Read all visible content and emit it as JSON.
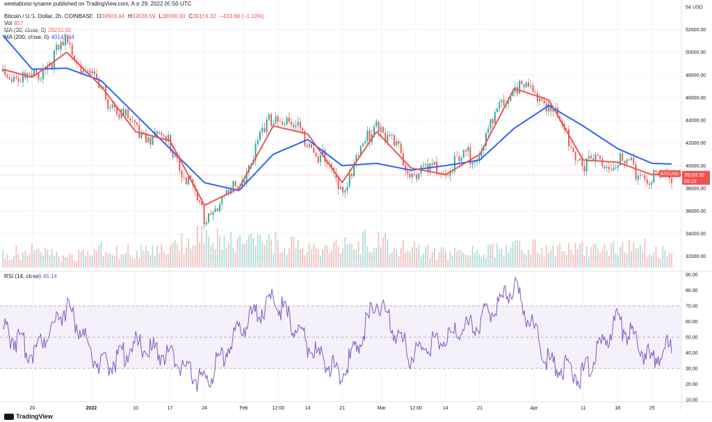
{
  "publish_line": "weetabixismyname published on TradingView.com, Apr 29, 2022 09:50 UTC",
  "legend": {
    "symbol": "Bitcoin / U.S. Dollar, 2h, COINBASE",
    "o_label": "O",
    "o": "39603.44",
    "h_label": "H",
    "h": "39638.59",
    "l_label": "L",
    "l": "38999.00",
    "c_label": "C",
    "c": "39169.32",
    "change": "−433.68 (−1.10%)",
    "vol_label": "Vol",
    "vol": "857",
    "ma30_label": "MA (30, close, 0)",
    "ma30": "39266.98",
    "ma200_label": "MA (200, close, 0)",
    "ma200": "40147.44",
    "rsi_label": "RSI (14, close)",
    "rsi": "45.14"
  },
  "price_axis": {
    "unit_label": "USD",
    "ticks": [
      "54",
      "52000.00",
      "50000.00",
      "48000.00",
      "46000.00",
      "44000.00",
      "42000.00",
      "40000.00",
      "38000.00",
      "36000.00",
      "34000.00",
      "32000.00"
    ],
    "symbol_tag": "BTCUSD",
    "last_price": "39169.32",
    "countdown": "09:19"
  },
  "rsi_axis": {
    "ticks": [
      "90.00",
      "80.00",
      "70.00",
      "60.00",
      "50.00",
      "40.00",
      "30.00",
      "20.00",
      "10.00"
    ]
  },
  "time_axis": {
    "ticks": [
      "20",
      "2022",
      "10",
      "17",
      "24",
      "Feb",
      "12:00",
      "14",
      "21",
      "Mar",
      "12:00",
      "14",
      "21",
      "Apr",
      "11",
      "18",
      "25"
    ]
  },
  "brand": "TradingView",
  "colors": {
    "ma30": "#ef5350",
    "ma200": "#2962ff",
    "rsi": "#7e57c2",
    "up": "#26a69a",
    "down": "#ef5350",
    "rsi_band": "#ede7f6"
  },
  "chart_data": [
    {
      "type": "line",
      "x_unit": "date",
      "y_range": [
        31000,
        54000
      ],
      "x": [
        "2021-12-14",
        "2021-12-20",
        "2021-12-27",
        "2022-01-03",
        "2022-01-10",
        "2022-01-17",
        "2022-01-24",
        "2022-01-31",
        "2022-02-07",
        "2022-02-14",
        "2022-02-21",
        "2022-02-28",
        "2022-03-07",
        "2022-03-14",
        "2022-03-21",
        "2022-03-28",
        "2022-04-04",
        "2022-04-11",
        "2022-04-18",
        "2022-04-25",
        "2022-04-29"
      ],
      "series": [
        {
          "name": "Bitcoin / U.S. Dollar",
          "values": [
            48300,
            47500,
            50800,
            46500,
            43200,
            42000,
            35500,
            38300,
            44500,
            42500,
            38000,
            44000,
            39500,
            39500,
            41500,
            47200,
            45500,
            40200,
            40500,
            38800,
            39169
          ]
        },
        {
          "name": "MA (30, close, 0)",
          "values": [
            48500,
            47800,
            50000,
            47000,
            43000,
            42200,
            36500,
            38000,
            43500,
            42800,
            38500,
            43000,
            39800,
            39200,
            41000,
            46800,
            45800,
            40500,
            40300,
            39200,
            39267
          ]
        },
        {
          "name": "MA (200, close, 0)",
          "values": [
            51500,
            48500,
            48600,
            47500,
            44500,
            41500,
            38500,
            37800,
            41000,
            42300,
            40000,
            40200,
            39600,
            40000,
            40500,
            43300,
            45300,
            43500,
            41500,
            40200,
            40147
          ]
        },
        {
          "name": "Vol",
          "values": [
            900,
            1100,
            700,
            1300,
            1000,
            1200,
            2600,
            1500,
            1700,
            1300,
            1600,
            1800,
            1200,
            900,
            1000,
            1400,
            1300,
            1200,
            1400,
            1300,
            857
          ]
        }
      ]
    },
    {
      "type": "line",
      "x_unit": "date",
      "y_range": [
        10,
        90
      ],
      "bands": [
        30,
        50,
        70
      ],
      "x": [
        "2021-12-14",
        "2021-12-20",
        "2021-12-27",
        "2022-01-03",
        "2022-01-10",
        "2022-01-17",
        "2022-01-24",
        "2022-01-31",
        "2022-02-07",
        "2022-02-14",
        "2022-02-21",
        "2022-02-28",
        "2022-03-07",
        "2022-03-14",
        "2022-03-21",
        "2022-03-28",
        "2022-04-04",
        "2022-04-11",
        "2022-04-18",
        "2022-04-25",
        "2022-04-29"
      ],
      "series": [
        {
          "name": "RSI (14, close)",
          "values": [
            55,
            40,
            70,
            30,
            45,
            38,
            20,
            55,
            75,
            45,
            25,
            72,
            38,
            50,
            60,
            82,
            35,
            25,
            60,
            35,
            45
          ]
        }
      ]
    }
  ]
}
